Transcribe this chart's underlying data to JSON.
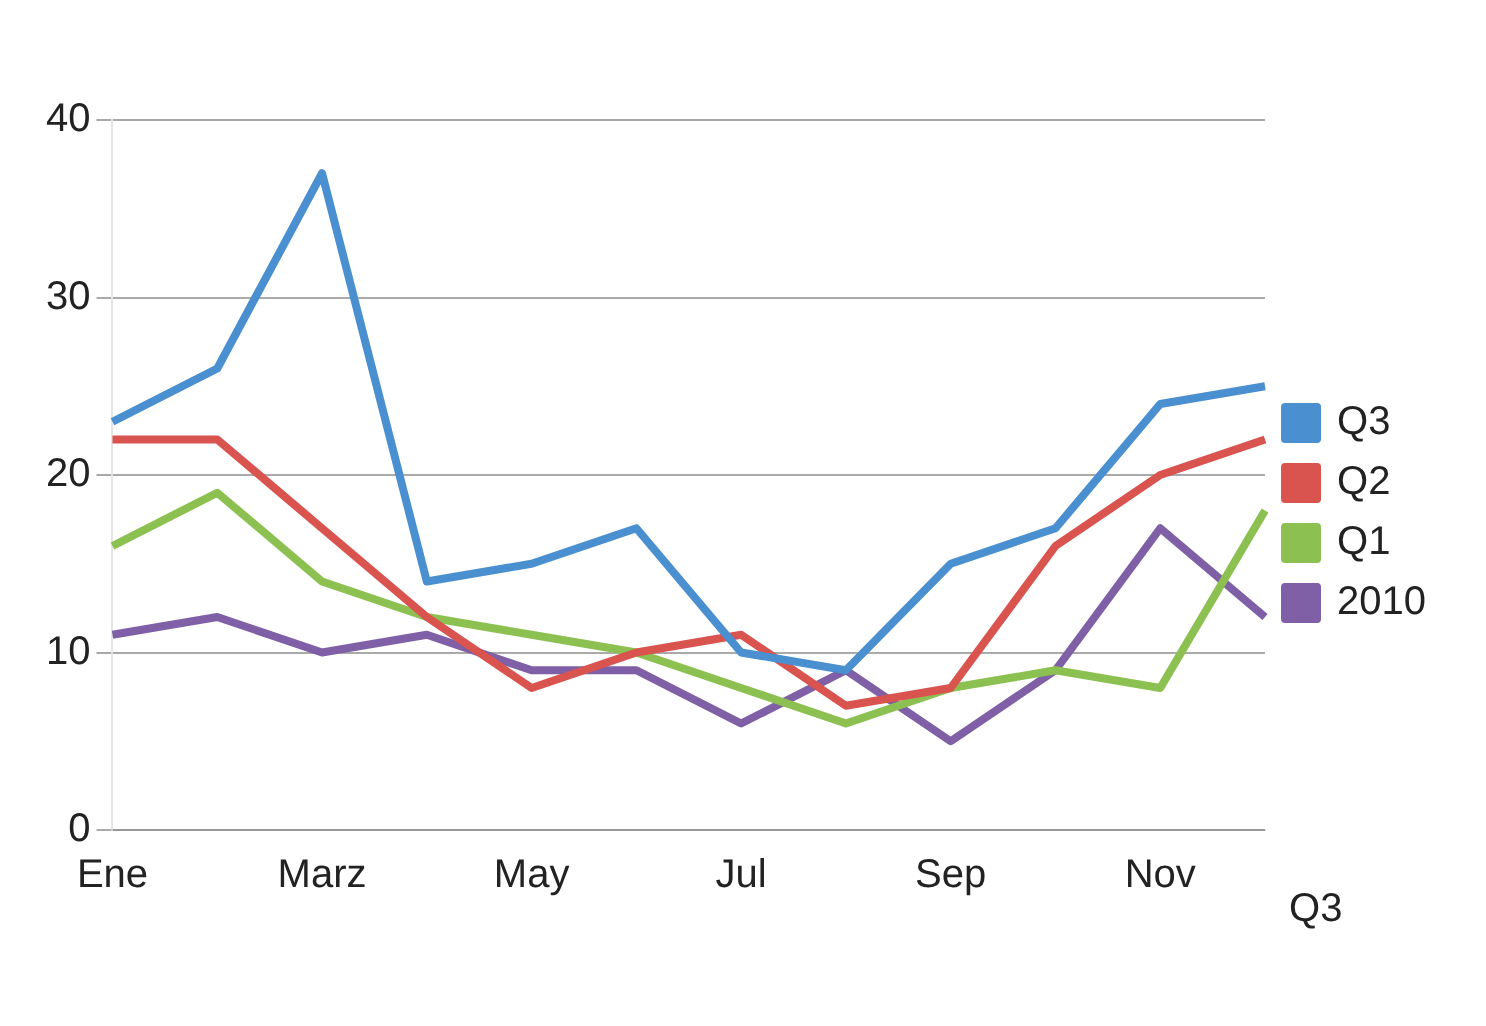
{
  "chart_data": {
    "type": "line",
    "categories": [
      "Ene",
      null,
      "Marz",
      null,
      "May",
      null,
      "Jul",
      null,
      "Sep",
      null,
      "Nov",
      null
    ],
    "series": [
      {
        "name": "Q3",
        "color": "#4a8fd0",
        "values": [
          23,
          26,
          37,
          14,
          15,
          17,
          10,
          9,
          15,
          17,
          24,
          25
        ]
      },
      {
        "name": "Q2",
        "color": "#d9534f",
        "values": [
          22,
          22,
          17,
          12,
          8,
          10,
          11,
          7,
          8,
          16,
          20,
          22
        ]
      },
      {
        "name": "Q1",
        "color": "#8cc152",
        "values": [
          16,
          19,
          14,
          12,
          11,
          10,
          8,
          6,
          8,
          9,
          8,
          18
        ]
      },
      {
        "name": "2010",
        "color": "#7f5fa6",
        "values": [
          11,
          12,
          10,
          11,
          9,
          9,
          6,
          9,
          5,
          9,
          17,
          12
        ]
      }
    ],
    "ylim": [
      0,
      40
    ],
    "yticks": [
      0,
      10,
      20,
      30,
      40
    ],
    "grid": "y",
    "legend": "right",
    "marker": "none",
    "annotations": [
      "Q3"
    ]
  }
}
